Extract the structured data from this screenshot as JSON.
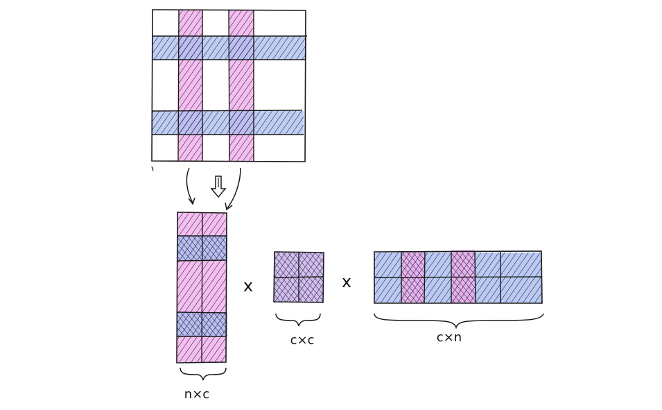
{
  "diagram": {
    "type": "hand-drawn CUR matrix decomposition sketch",
    "colors": {
      "ink": "#1a1a1a",
      "column_highlight": "#f2a8ee",
      "row_highlight": "#a9bdf2",
      "hatch": "#1a1a1a"
    },
    "operators": {
      "times_1": "x",
      "times_2": "x"
    },
    "labels": {
      "left_matrix": "n×c",
      "middle_matrix": "c×c",
      "right_matrix": "c×n"
    }
  }
}
